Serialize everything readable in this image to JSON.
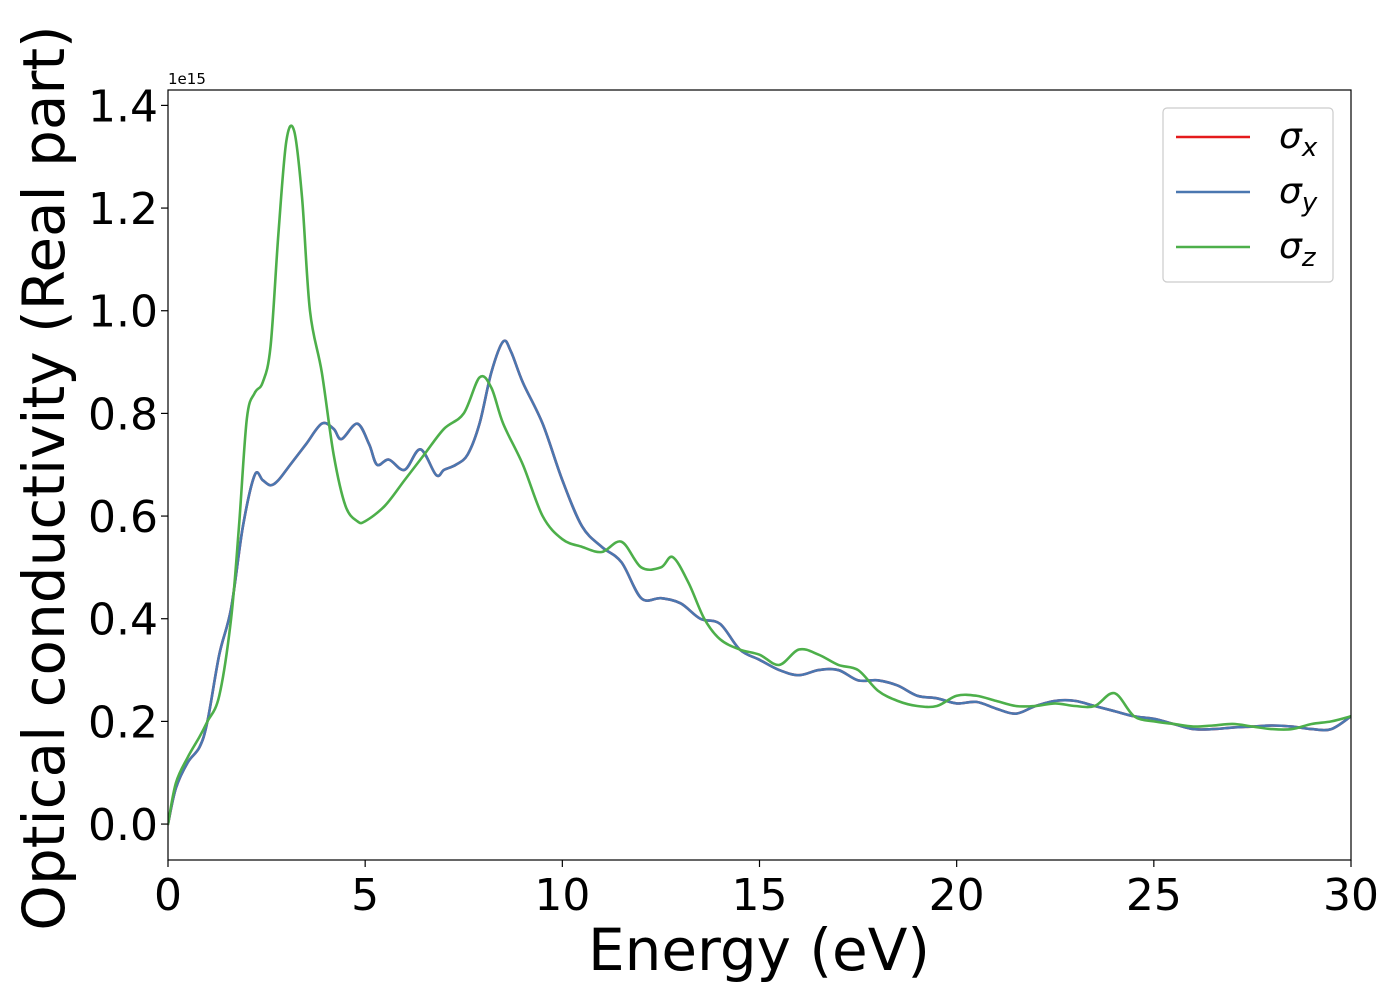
{
  "chart_data": {
    "type": "line",
    "xlabel": "Energy (eV)",
    "ylabel": "Optical conductivity (Real part)",
    "offset_text": "1e15",
    "xlim": [
      0,
      30
    ],
    "ylim": [
      -0.07,
      1.43
    ],
    "y_scale_factor": 1000000000000000.0,
    "x_ticks": [
      0,
      5,
      10,
      15,
      20,
      25,
      30
    ],
    "x_tick_labels": [
      "0",
      "5",
      "10",
      "15",
      "20",
      "25",
      "30"
    ],
    "y_ticks": [
      0.0,
      0.2,
      0.4,
      0.6,
      0.8,
      1.0,
      1.2,
      1.4
    ],
    "y_tick_labels": [
      "0.0",
      "0.2",
      "0.4",
      "0.6",
      "0.8",
      "1.0",
      "1.2",
      "1.4"
    ],
    "grid": false,
    "legend_position": "top-right",
    "series": [
      {
        "name": "σx",
        "legend_base": "σ",
        "legend_sub": "x",
        "color": "#e41a1c",
        "x": [
          0,
          0.2,
          0.5,
          0.8,
          1.0,
          1.3,
          1.6,
          1.9,
          2.2,
          2.4,
          2.6,
          2.8,
          3.1,
          3.5,
          3.9,
          4.2,
          4.4,
          4.8,
          5.1,
          5.3,
          5.6,
          6.0,
          6.4,
          6.8,
          7.0,
          7.3,
          7.6,
          7.9,
          8.2,
          8.5,
          8.7,
          9.0,
          9.5,
          10.0,
          10.5,
          11.0,
          11.5,
          12.0,
          12.5,
          13.0,
          13.5,
          14.0,
          14.5,
          15.0,
          15.5,
          16.0,
          16.5,
          17.0,
          17.5,
          18.0,
          18.5,
          19.0,
          19.5,
          20.0,
          20.5,
          21.0,
          21.5,
          22.0,
          22.5,
          23.0,
          23.5,
          24.0,
          24.5,
          25.0,
          25.5,
          26.0,
          26.5,
          27.0,
          27.5,
          28.0,
          28.5,
          29.0,
          29.5,
          30.0
        ],
        "y": [
          0.0,
          0.07,
          0.12,
          0.15,
          0.2,
          0.33,
          0.42,
          0.58,
          0.68,
          0.67,
          0.66,
          0.67,
          0.7,
          0.74,
          0.78,
          0.77,
          0.75,
          0.78,
          0.74,
          0.7,
          0.71,
          0.69,
          0.73,
          0.68,
          0.69,
          0.7,
          0.72,
          0.78,
          0.88,
          0.94,
          0.92,
          0.86,
          0.78,
          0.67,
          0.58,
          0.54,
          0.51,
          0.44,
          0.44,
          0.43,
          0.4,
          0.39,
          0.34,
          0.32,
          0.3,
          0.29,
          0.3,
          0.3,
          0.28,
          0.28,
          0.27,
          0.25,
          0.245,
          0.235,
          0.238,
          0.225,
          0.215,
          0.23,
          0.24,
          0.24,
          0.23,
          0.22,
          0.21,
          0.205,
          0.195,
          0.185,
          0.185,
          0.188,
          0.19,
          0.192,
          0.19,
          0.185,
          0.185,
          0.21
        ]
      },
      {
        "name": "σy",
        "legend_base": "σ",
        "legend_sub": "y",
        "color": "#4a77b0",
        "x": [
          0,
          0.2,
          0.5,
          0.8,
          1.0,
          1.3,
          1.6,
          1.9,
          2.2,
          2.4,
          2.6,
          2.8,
          3.1,
          3.5,
          3.9,
          4.2,
          4.4,
          4.8,
          5.1,
          5.3,
          5.6,
          6.0,
          6.4,
          6.8,
          7.0,
          7.3,
          7.6,
          7.9,
          8.2,
          8.5,
          8.7,
          9.0,
          9.5,
          10.0,
          10.5,
          11.0,
          11.5,
          12.0,
          12.5,
          13.0,
          13.5,
          14.0,
          14.5,
          15.0,
          15.5,
          16.0,
          16.5,
          17.0,
          17.5,
          18.0,
          18.5,
          19.0,
          19.5,
          20.0,
          20.5,
          21.0,
          21.5,
          22.0,
          22.5,
          23.0,
          23.5,
          24.0,
          24.5,
          25.0,
          25.5,
          26.0,
          26.5,
          27.0,
          27.5,
          28.0,
          28.5,
          29.0,
          29.5,
          30.0
        ],
        "y": [
          0.0,
          0.07,
          0.12,
          0.15,
          0.2,
          0.33,
          0.42,
          0.58,
          0.68,
          0.67,
          0.66,
          0.67,
          0.7,
          0.74,
          0.78,
          0.77,
          0.75,
          0.78,
          0.74,
          0.7,
          0.71,
          0.69,
          0.73,
          0.68,
          0.69,
          0.7,
          0.72,
          0.78,
          0.88,
          0.94,
          0.92,
          0.86,
          0.78,
          0.67,
          0.58,
          0.54,
          0.51,
          0.44,
          0.44,
          0.43,
          0.4,
          0.39,
          0.34,
          0.32,
          0.3,
          0.29,
          0.3,
          0.3,
          0.28,
          0.28,
          0.27,
          0.25,
          0.245,
          0.235,
          0.238,
          0.225,
          0.215,
          0.23,
          0.24,
          0.24,
          0.23,
          0.22,
          0.21,
          0.205,
          0.195,
          0.185,
          0.185,
          0.188,
          0.19,
          0.192,
          0.19,
          0.185,
          0.185,
          0.21
        ]
      },
      {
        "name": "σz",
        "legend_base": "σ",
        "legend_sub": "z",
        "color": "#4daf4a",
        "x": [
          0,
          0.2,
          0.5,
          0.8,
          1.0,
          1.3,
          1.6,
          1.8,
          2.0,
          2.2,
          2.4,
          2.6,
          2.8,
          3.0,
          3.2,
          3.4,
          3.6,
          3.9,
          4.2,
          4.5,
          4.8,
          5.0,
          5.5,
          6.0,
          6.5,
          7.0,
          7.5,
          7.9,
          8.2,
          8.5,
          9.0,
          9.5,
          10.0,
          10.5,
          11.0,
          11.5,
          12.0,
          12.5,
          12.8,
          13.2,
          13.6,
          14.0,
          14.5,
          15.0,
          15.5,
          16.0,
          16.5,
          17.0,
          17.5,
          18.0,
          18.5,
          19.0,
          19.5,
          20.0,
          20.5,
          21.0,
          21.5,
          22.0,
          22.5,
          23.0,
          23.5,
          24.0,
          24.5,
          25.0,
          25.5,
          26.0,
          26.5,
          27.0,
          27.5,
          28.0,
          28.5,
          29.0,
          29.5,
          30.0
        ],
        "y": [
          0.0,
          0.08,
          0.13,
          0.17,
          0.2,
          0.25,
          0.4,
          0.58,
          0.79,
          0.84,
          0.86,
          0.93,
          1.15,
          1.33,
          1.35,
          1.22,
          1.0,
          0.88,
          0.72,
          0.62,
          0.59,
          0.59,
          0.62,
          0.67,
          0.72,
          0.77,
          0.8,
          0.87,
          0.85,
          0.78,
          0.7,
          0.6,
          0.555,
          0.54,
          0.53,
          0.55,
          0.5,
          0.5,
          0.52,
          0.47,
          0.4,
          0.36,
          0.34,
          0.33,
          0.31,
          0.34,
          0.33,
          0.31,
          0.3,
          0.26,
          0.24,
          0.23,
          0.23,
          0.25,
          0.25,
          0.24,
          0.23,
          0.23,
          0.235,
          0.23,
          0.23,
          0.255,
          0.21,
          0.2,
          0.195,
          0.19,
          0.192,
          0.195,
          0.19,
          0.185,
          0.185,
          0.195,
          0.2,
          0.21
        ]
      }
    ]
  }
}
